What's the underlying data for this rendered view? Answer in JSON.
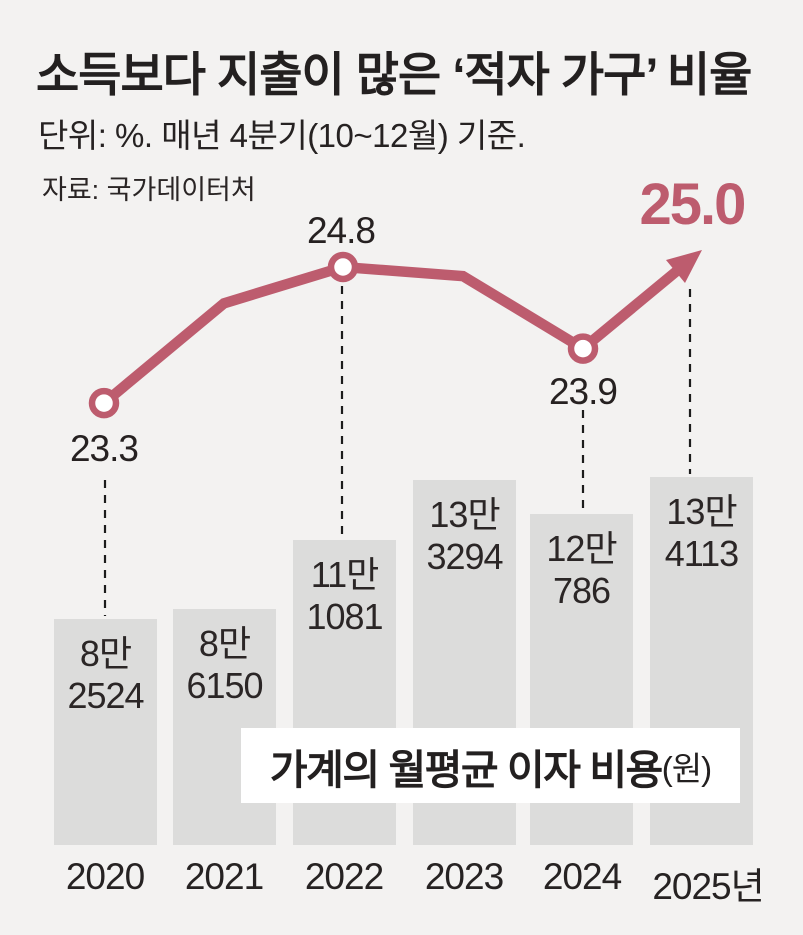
{
  "header": {
    "title": "소득보다 지출이 많은 ‘적자 가구’ 비율",
    "subtitle": "단위: %. 매년 4분기(10~12월) 기준.",
    "source": "자료: 국가데이터처"
  },
  "caption": {
    "bold": "가계의 월평균 이자 비용",
    "paren": "(원)"
  },
  "colors": {
    "accent": "#bd5c6e",
    "background": "#f3f2f1",
    "bar": "#dcdcdb",
    "text": "#262121",
    "dash": "#1c1c1c"
  },
  "chart_data": {
    "type": "line",
    "categories": [
      "2020",
      "2021",
      "2022",
      "2023",
      "2024",
      "2025"
    ],
    "x_tick_labels": [
      "2020",
      "2021",
      "2022",
      "2023",
      "2024",
      "2025년"
    ],
    "grid": false,
    "legend": "none",
    "series": [
      {
        "name": "적자 가구 비율",
        "type": "line",
        "unit": "%",
        "values": [
          23.3,
          24.4,
          24.8,
          24.7,
          23.9,
          25.0
        ],
        "data_labels": [
          "23.3",
          "",
          "24.8",
          "",
          "23.9",
          "25.0"
        ],
        "unlabeled_estimated_points": [
          "2021",
          "2023"
        ],
        "highlight_label": "25.0"
      },
      {
        "name": "가계의 월평균 이자 비용",
        "type": "bar",
        "unit": "원",
        "values": [
          82524,
          86150,
          111081,
          133294,
          120786,
          134113
        ],
        "data_labels": [
          [
            "8만",
            "2524"
          ],
          [
            "8만",
            "6150"
          ],
          [
            "11만",
            "1081"
          ],
          [
            "13만",
            "3294"
          ],
          [
            "12만",
            "786"
          ],
          [
            "13만",
            "4113"
          ]
        ]
      }
    ]
  }
}
